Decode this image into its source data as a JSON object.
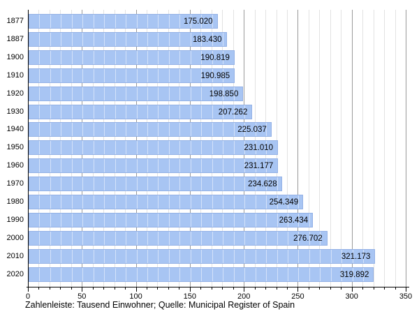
{
  "chart_data": {
    "type": "bar",
    "orientation": "horizontal",
    "title": "",
    "caption": "Zahlenleiste: Tausend Einwohner; Quelle: Municipal Register of Spain",
    "categories": [
      "1877",
      "1887",
      "1900",
      "1910",
      "1920",
      "1930",
      "1940",
      "1950",
      "1960",
      "1970",
      "1980",
      "1990",
      "2000",
      "2010",
      "2020"
    ],
    "values": [
      175.02,
      183.43,
      190.819,
      190.985,
      198.85,
      207.262,
      225.037,
      231.01,
      231.177,
      234.628,
      254.349,
      263.434,
      276.702,
      321.173,
      319.892
    ],
    "value_labels": [
      "175.020",
      "183.430",
      "190.819",
      "190.985",
      "198.850",
      "207.262",
      "225.037",
      "231.010",
      "231.177",
      "234.628",
      "254.349",
      "263.434",
      "276.702",
      "321.173",
      "319.892"
    ],
    "unit": "Tausend Einwohner",
    "xlim": [
      0,
      350
    ],
    "x_major_ticks": [
      "0",
      "50",
      "100",
      "150",
      "200",
      "250",
      "300",
      "350"
    ],
    "x_major_step": 50,
    "x_minor_step": 10,
    "grid": true,
    "legend": "none",
    "colors": {
      "bar_fill": "#A8C5F3",
      "bar_border": "rgba(122,152,214,0.45)",
      "grid_minor": "#E2E2E2",
      "grid_major": "#999999",
      "axis": "#000000",
      "text": "#000000"
    }
  }
}
